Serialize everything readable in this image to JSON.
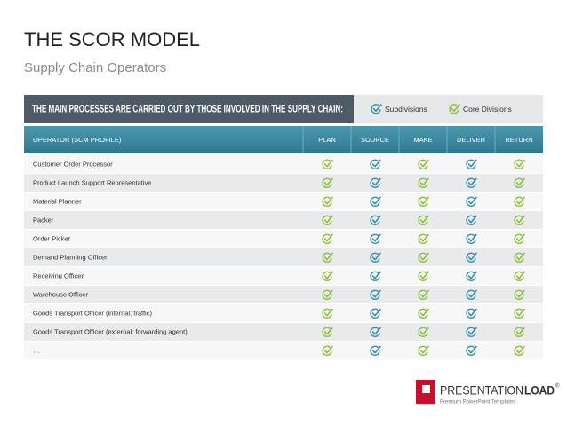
{
  "header": {
    "title": "THE SCOR MODEL",
    "subtitle": "Supply Chain Operators"
  },
  "banner": {
    "text": "THE MAIN PROCESSES ARE CARRIED OUT BY THOSE INVOLVED IN THE SUPPLY CHAIN:",
    "legend": [
      "Subdivisions",
      "Core Divisions"
    ]
  },
  "table": {
    "columns": [
      "OPERATOR (SCM PROFILE)",
      "PLAN",
      "SOURCE",
      "MAKE",
      "DELIVER",
      "RETURN"
    ],
    "rows": [
      "Customer Order Processor",
      "Product Launch Support Representative",
      "Material Planner",
      "Packer",
      "Order Picker",
      "Demand Planning Officer",
      "Receiving Officer",
      "Warehouse Officer",
      "Goods Transport Officer (internal; traffic)",
      "Goods Transport Officer (external: forwarding agent)",
      "…"
    ]
  },
  "footer": {
    "brand": "PRESENTATION",
    "brand_bold": "LOAD",
    "mark": "®",
    "tagline": "Premium PowerPoint Templates"
  }
}
